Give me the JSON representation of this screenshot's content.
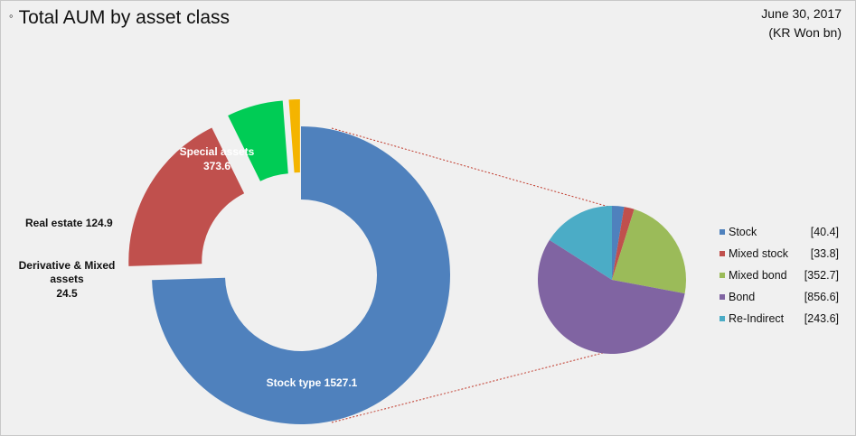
{
  "header": {
    "bullet": "◦",
    "title": "Total AUM by asset class",
    "date": "June 30, 2017",
    "unit": "(KR Won bn)"
  },
  "chart_data": [
    {
      "type": "donut",
      "slices": [
        {
          "name": "Stock type",
          "value": 1527.1,
          "color": "#4f81bd",
          "label_color": "#ffffff"
        },
        {
          "name": "Special assets",
          "value": 373.6,
          "color": "#c0504d",
          "label_color": "#ffffff"
        },
        {
          "name": "Real estate",
          "value": 124.9,
          "color": "#00cc55",
          "label_color": "#111111"
        },
        {
          "name": "Derivative & Mixed assets",
          "value": 24.5,
          "color": "#f4b400",
          "label_color": "#111111"
        }
      ]
    },
    {
      "type": "pie",
      "breakdown_of": "Stock type",
      "slices": [
        {
          "name": "Stock",
          "value": 40.4,
          "value_label": "[40.4]",
          "color": "#4f81bd"
        },
        {
          "name": "Mixed stock",
          "value": 33.8,
          "value_label": "[33.8]",
          "color": "#c0504d"
        },
        {
          "name": "Mixed bond",
          "value": 352.7,
          "value_label": "[352.7]",
          "color": "#9bbb59"
        },
        {
          "name": "Bond",
          "value": 856.6,
          "value_label": "[856.6]",
          "color": "#8064a2"
        },
        {
          "name": "Re-Indirect",
          "value": 243.6,
          "value_label": "[243.6]",
          "color": "#4bacc6"
        }
      ]
    }
  ]
}
